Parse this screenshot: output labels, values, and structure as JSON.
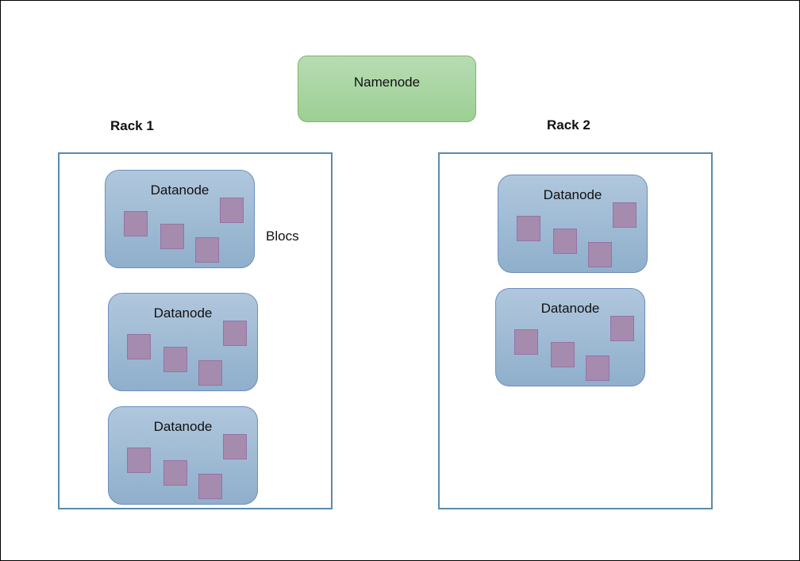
{
  "namenode": {
    "label": "Namenode"
  },
  "racks": [
    {
      "label": "Rack 1",
      "datanodes": [
        {
          "label": "Datanode"
        },
        {
          "label": "Datanode"
        },
        {
          "label": "Datanode"
        }
      ]
    },
    {
      "label": "Rack 2",
      "datanodes": [
        {
          "label": "Datanode"
        },
        {
          "label": "Datanode"
        }
      ]
    }
  ],
  "blocs_label": "Blocs",
  "colors": {
    "namenode_fill": "#a8d5a2",
    "datanode_fill": "#9fbad3",
    "block_fill": "#a58bad",
    "rack_border": "#5b8ab0"
  }
}
